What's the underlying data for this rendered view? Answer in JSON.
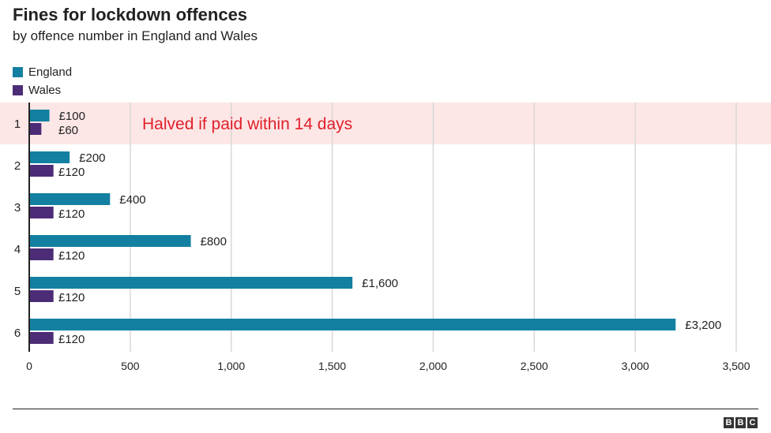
{
  "title": "Fines for lockdown offences",
  "subtitle": "by offence number in England and Wales",
  "colors": {
    "england": "#1380A1",
    "wales": "#4C2C76",
    "highlight_band": "#FDE6E6",
    "annotation": "#E0202A",
    "grid": "#D8D8D8",
    "axis": "#222222"
  },
  "chart_data": {
    "type": "bar",
    "orientation": "horizontal",
    "categories": [
      "1",
      "2",
      "3",
      "4",
      "5",
      "6"
    ],
    "series": [
      {
        "name": "England",
        "values": [
          100,
          200,
          400,
          800,
          1600,
          3200
        ],
        "labels": [
          "£100",
          "£200",
          "£400",
          "£800",
          "£1,600",
          "£3,200"
        ]
      },
      {
        "name": "Wales",
        "values": [
          60,
          120,
          120,
          120,
          120,
          120
        ],
        "labels": [
          "£60",
          "£120",
          "£120",
          "£120",
          "£120",
          "£120"
        ]
      }
    ],
    "xlim": [
      0,
      3500
    ],
    "xticks": [
      0,
      500,
      1000,
      1500,
      2000,
      2500,
      3000,
      3500
    ],
    "xtick_labels": [
      "0",
      "500",
      "1,000",
      "1,500",
      "2,000",
      "2,500",
      "3,000",
      "3,500"
    ],
    "grid": true,
    "legend_position": "top-left",
    "annotation": {
      "text": "Halved if paid within 14 days",
      "category": "1"
    }
  },
  "footer": {
    "logo_letters": [
      "B",
      "B",
      "C"
    ]
  }
}
